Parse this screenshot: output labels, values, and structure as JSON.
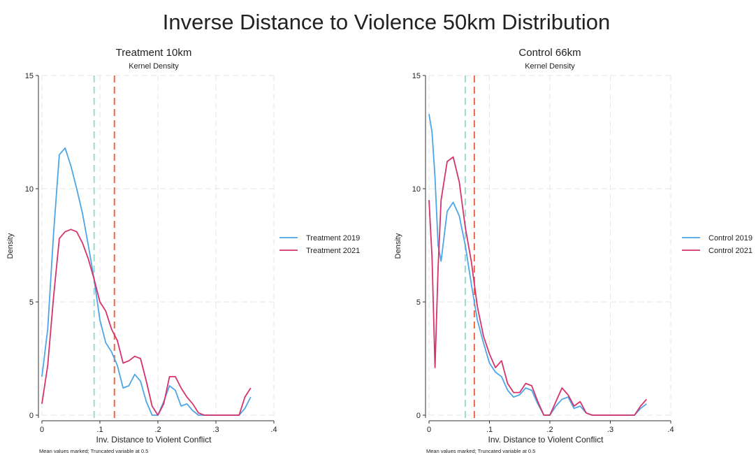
{
  "figure_title": "Inverse Distance to Violence 50km Distribution",
  "colors": {
    "series_2019": "#4da6e8",
    "series_2021": "#d6336c",
    "mean_2019": "#9fd9cf",
    "mean_2021": "#ee6a44",
    "grid": "#e6e6e6"
  },
  "chart_data": [
    {
      "type": "line",
      "title": "Treatment 10km",
      "subtitle": "Kernel Density",
      "xlabel": "Inv. Distance to Violent Conflict",
      "ylabel": "Density",
      "note": "Mean values marked; Truncated variable at 0.5",
      "xlim": [
        0,
        0.4
      ],
      "ylim": [
        0,
        15
      ],
      "xticks": [
        0,
        0.1,
        0.2,
        0.3,
        0.4
      ],
      "xtick_labels": [
        "0",
        ".1",
        ".2",
        ".3",
        ".4"
      ],
      "yticks": [
        0,
        5,
        10,
        15
      ],
      "ytick_labels": [
        "0",
        "5",
        "10",
        "15"
      ],
      "grid": true,
      "legend_position": "right",
      "mean_lines": [
        {
          "series": "Treatment 2019",
          "x": 0.09
        },
        {
          "series": "Treatment 2021",
          "x": 0.125
        }
      ],
      "series": [
        {
          "name": "Treatment 2019",
          "x": [
            0,
            0.01,
            0.02,
            0.03,
            0.04,
            0.05,
            0.06,
            0.07,
            0.08,
            0.09,
            0.1,
            0.11,
            0.12,
            0.13,
            0.14,
            0.15,
            0.16,
            0.17,
            0.18,
            0.19,
            0.2,
            0.21,
            0.22,
            0.23,
            0.24,
            0.25,
            0.26,
            0.27,
            0.28,
            0.29,
            0.3,
            0.31,
            0.32,
            0.33,
            0.34,
            0.35,
            0.36
          ],
          "y": [
            1.7,
            3.8,
            8,
            11.5,
            11.8,
            11,
            10,
            8.9,
            7.5,
            6,
            4.2,
            3.2,
            2.8,
            2.2,
            1.2,
            1.3,
            1.8,
            1.5,
            0.6,
            0,
            0,
            0.6,
            1.3,
            1.1,
            0.4,
            0.5,
            0.2,
            0,
            0,
            0,
            0,
            0,
            0,
            0,
            0,
            0.3,
            0.8
          ]
        },
        {
          "name": "Treatment 2021",
          "x": [
            0,
            0.01,
            0.02,
            0.03,
            0.04,
            0.05,
            0.06,
            0.07,
            0.08,
            0.09,
            0.1,
            0.11,
            0.12,
            0.13,
            0.14,
            0.15,
            0.16,
            0.17,
            0.18,
            0.19,
            0.2,
            0.21,
            0.22,
            0.23,
            0.24,
            0.25,
            0.26,
            0.27,
            0.28,
            0.29,
            0.3,
            0.31,
            0.32,
            0.33,
            0.34,
            0.35,
            0.36
          ],
          "y": [
            0.5,
            2.2,
            5.2,
            7.8,
            8.1,
            8.2,
            8.1,
            7.6,
            6.9,
            6,
            5,
            4.6,
            3.8,
            3.3,
            2.3,
            2.4,
            2.6,
            2.5,
            1.5,
            0.4,
            0,
            0.5,
            1.7,
            1.7,
            1.2,
            0.8,
            0.5,
            0.1,
            0,
            0,
            0,
            0,
            0,
            0,
            0,
            0.8,
            1.2
          ]
        }
      ]
    },
    {
      "type": "line",
      "title": "Control 66km",
      "subtitle": "Kernel Density",
      "xlabel": "Inv. Distance to Violent Conflict",
      "ylabel": "Density",
      "note": "Mean values marked; Truncated variable at 0.5",
      "xlim": [
        0,
        0.4
      ],
      "ylim": [
        0,
        15
      ],
      "xticks": [
        0,
        0.1,
        0.2,
        0.3,
        0.4
      ],
      "xtick_labels": [
        "0",
        ".1",
        ".2",
        ".3",
        ".4"
      ],
      "yticks": [
        0,
        5,
        10,
        15
      ],
      "ytick_labels": [
        "0",
        "5",
        "10",
        "15"
      ],
      "grid": true,
      "legend_position": "right",
      "mean_lines": [
        {
          "series": "Control 2019",
          "x": 0.06
        },
        {
          "series": "Control 2021",
          "x": 0.075
        }
      ],
      "series": [
        {
          "name": "Control 2019",
          "x": [
            0,
            0.005,
            0.01,
            0.015,
            0.02,
            0.03,
            0.04,
            0.05,
            0.06,
            0.07,
            0.08,
            0.09,
            0.1,
            0.11,
            0.12,
            0.13,
            0.14,
            0.15,
            0.16,
            0.17,
            0.18,
            0.19,
            0.2,
            0.21,
            0.22,
            0.23,
            0.24,
            0.25,
            0.26,
            0.27,
            0.28,
            0.29,
            0.3,
            0.31,
            0.32,
            0.33,
            0.34,
            0.35,
            0.36
          ],
          "y": [
            13.3,
            12.5,
            10.5,
            7.5,
            6.8,
            9,
            9.4,
            8.8,
            7.5,
            5.8,
            4.2,
            3.2,
            2.3,
            1.9,
            1.7,
            1.1,
            0.8,
            0.9,
            1.2,
            1.1,
            0.5,
            0,
            0,
            0.4,
            0.7,
            0.8,
            0.3,
            0.4,
            0.1,
            0,
            0,
            0,
            0,
            0,
            0,
            0,
            0,
            0.3,
            0.5
          ]
        },
        {
          "name": "Control 2021",
          "x": [
            0,
            0.005,
            0.01,
            0.015,
            0.02,
            0.03,
            0.04,
            0.05,
            0.06,
            0.07,
            0.08,
            0.09,
            0.1,
            0.11,
            0.12,
            0.13,
            0.14,
            0.15,
            0.16,
            0.17,
            0.18,
            0.19,
            0.2,
            0.21,
            0.22,
            0.23,
            0.24,
            0.25,
            0.26,
            0.27,
            0.28,
            0.29,
            0.3,
            0.31,
            0.32,
            0.33,
            0.34,
            0.35,
            0.36
          ],
          "y": [
            9.5,
            7,
            2.1,
            6.5,
            9.5,
            11.2,
            11.4,
            10.3,
            8.3,
            6.8,
            4.8,
            3.5,
            2.7,
            2.1,
            2.4,
            1.4,
            1,
            1,
            1.4,
            1.3,
            0.6,
            0,
            0,
            0.6,
            1.2,
            0.9,
            0.4,
            0.6,
            0.1,
            0,
            0,
            0,
            0,
            0,
            0,
            0,
            0,
            0.4,
            0.7
          ]
        }
      ]
    }
  ]
}
